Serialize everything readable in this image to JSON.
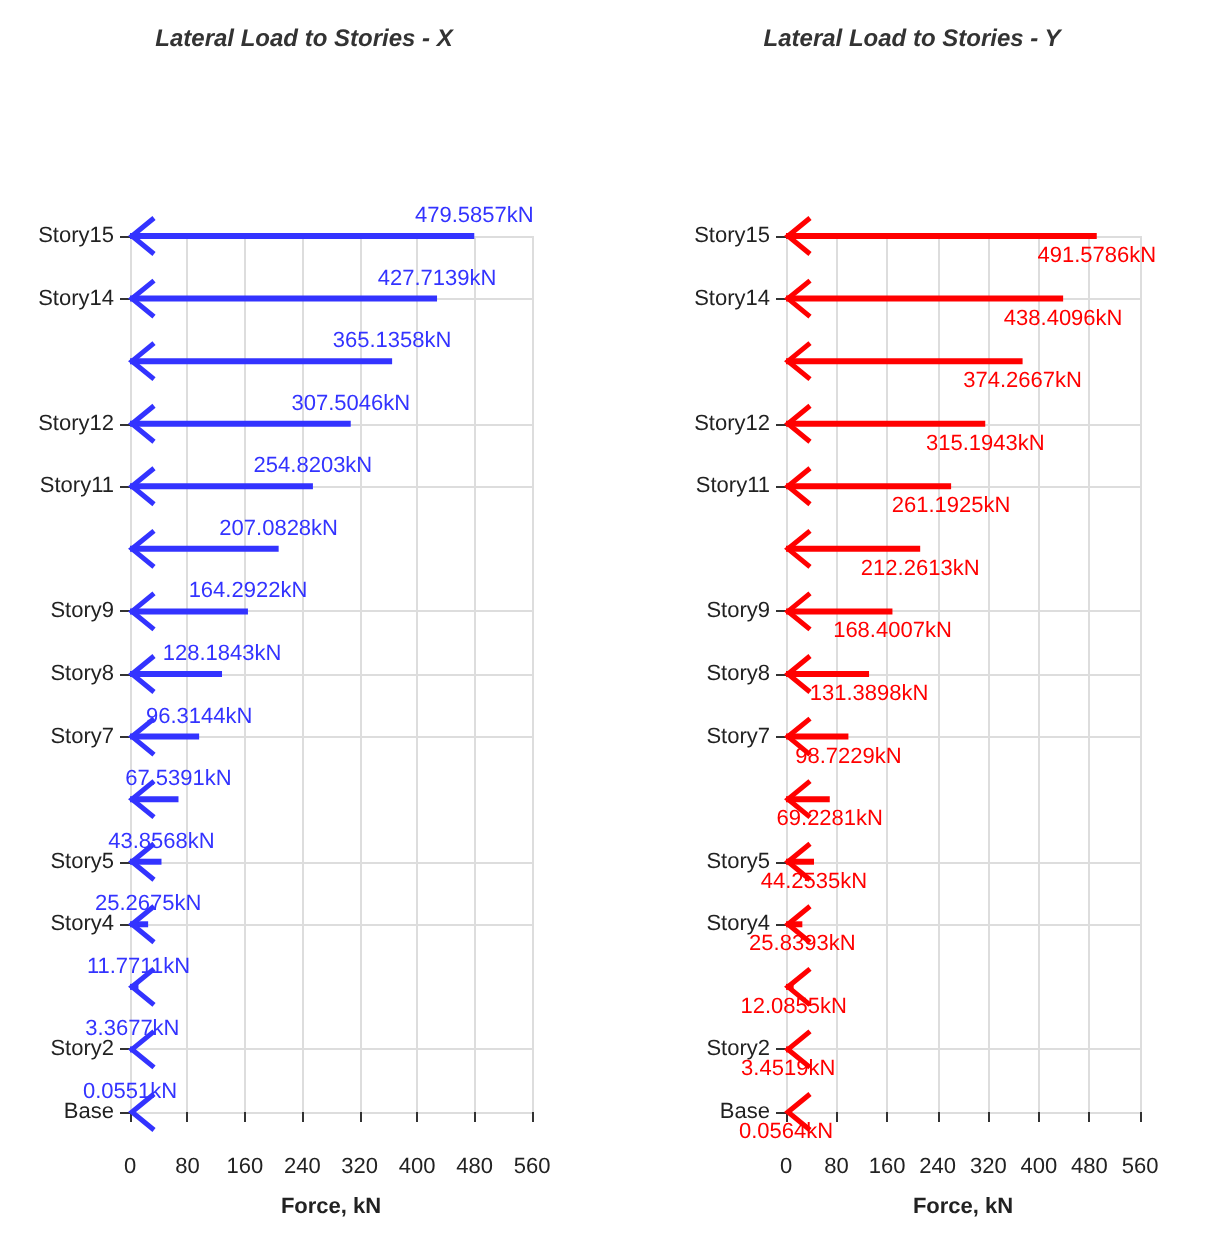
{
  "chart_data": [
    {
      "type": "bar",
      "orientation": "horizontal",
      "title": "Lateral Load to Stories - X",
      "xlabel": "Force, kN",
      "categories": [
        "Story15",
        "Story14",
        null,
        "Story12",
        "Story11",
        null,
        "Story9",
        "Story8",
        "Story7",
        null,
        "Story5",
        "Story4",
        null,
        "Story2",
        "Base"
      ],
      "series": [
        {
          "color": "#3333ff",
          "values": [
            479.5857,
            427.7139,
            365.1358,
            307.5046,
            254.8203,
            207.0828,
            164.2922,
            128.1843,
            96.3144,
            67.5391,
            43.8568,
            25.2675,
            11.7711,
            3.3677,
            0.0551
          ],
          "value_labels": [
            "479.5857kN",
            "427.7139kN",
            "365.1358kN",
            "307.5046kN",
            "254.8203kN",
            "207.0828kN",
            "164.2922kN",
            "128.1843kN",
            "96.3144kN",
            "67.5391kN",
            "43.8568kN",
            "25.2675kN",
            "11.7711kN",
            "3.3677kN",
            "0.0551kN"
          ]
        }
      ],
      "xlim": [
        0,
        560
      ],
      "xticks": [
        0,
        80,
        160,
        240,
        320,
        400,
        480,
        560
      ],
      "grid": true
    },
    {
      "type": "bar",
      "orientation": "horizontal",
      "title": "Lateral Load to Stories - Y",
      "xlabel": "Force, kN",
      "categories": [
        "Story15",
        "Story14",
        null,
        "Story12",
        "Story11",
        null,
        "Story9",
        "Story8",
        "Story7",
        null,
        "Story5",
        "Story4",
        null,
        "Story2",
        "Base"
      ],
      "series": [
        {
          "color": "#ff0000",
          "values": [
            491.5786,
            438.4096,
            374.2667,
            315.1943,
            261.1925,
            212.2613,
            168.4007,
            131.3898,
            98.7229,
            69.2281,
            44.2535,
            25.8393,
            12.0855,
            3.4519,
            0.0564
          ],
          "value_labels": [
            "491.5786kN",
            "438.4096kN",
            "374.2667kN",
            "315.1943kN",
            "261.1925kN",
            "212.2613kN",
            "168.4007kN",
            "131.3898kN",
            "98.7229kN",
            "69.2281kN",
            "44.2535kN",
            "25.8393kN",
            "12.0855kN",
            "3.4519kN",
            "0.0564kN"
          ]
        }
      ],
      "xlim": [
        0,
        560
      ],
      "xticks": [
        0,
        80,
        160,
        240,
        320,
        400,
        480,
        560
      ],
      "grid": true
    }
  ]
}
